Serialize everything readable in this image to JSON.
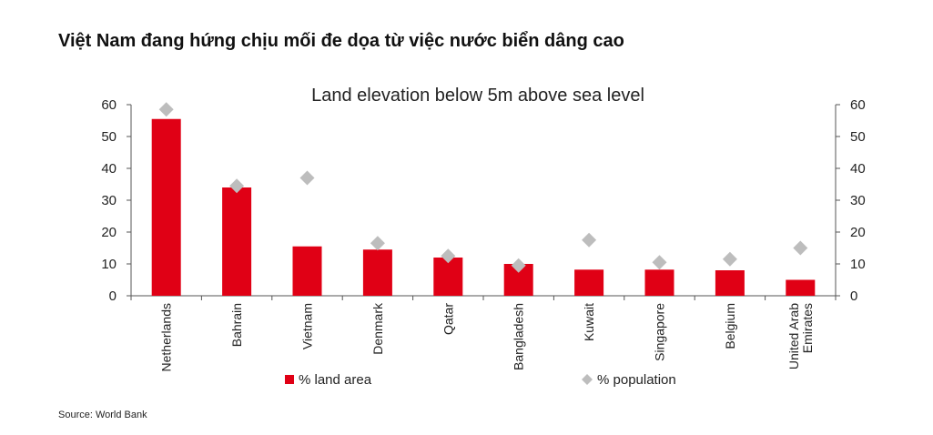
{
  "page_title": "Việt Nam đang hứng chịu mối đe dọa từ việc nước biển dâng cao",
  "source": "Source: World Bank",
  "chart_data": {
    "type": "bar",
    "title": "Land elevation below 5m above sea level",
    "categories": [
      "Netherlands",
      "Bahrain",
      "Vietnam",
      "Denmark",
      "Qatar",
      "Bangladesh",
      "Kuwait",
      "Singapore",
      "Belgium",
      "United Arab Emirates"
    ],
    "category_lines": [
      [
        "Netherlands"
      ],
      [
        "Bahrain"
      ],
      [
        "Vietnam"
      ],
      [
        "Denmark"
      ],
      [
        "Qatar"
      ],
      [
        "Bangladesh"
      ],
      [
        "Kuwait"
      ],
      [
        "Singapore"
      ],
      [
        "Belgium"
      ],
      [
        "United Arab",
        "Emirates"
      ]
    ],
    "series": [
      {
        "name": "% land area",
        "type": "bar",
        "color": "#e00015",
        "values": [
          55.5,
          34,
          15.5,
          14.5,
          12,
          10,
          8.2,
          8.2,
          8,
          5
        ]
      },
      {
        "name": "% population",
        "type": "marker",
        "marker": "diamond",
        "color": "#bdbdbd",
        "values": [
          58.5,
          34.5,
          37,
          16.5,
          12.5,
          9.5,
          17.5,
          10.5,
          11.5,
          15
        ]
      }
    ],
    "ylim": [
      0,
      60
    ],
    "yticks": [
      0,
      10,
      20,
      30,
      40,
      50,
      60
    ],
    "secondary_ylim": [
      0,
      60
    ],
    "grid": false,
    "legend_position": "bottom"
  }
}
